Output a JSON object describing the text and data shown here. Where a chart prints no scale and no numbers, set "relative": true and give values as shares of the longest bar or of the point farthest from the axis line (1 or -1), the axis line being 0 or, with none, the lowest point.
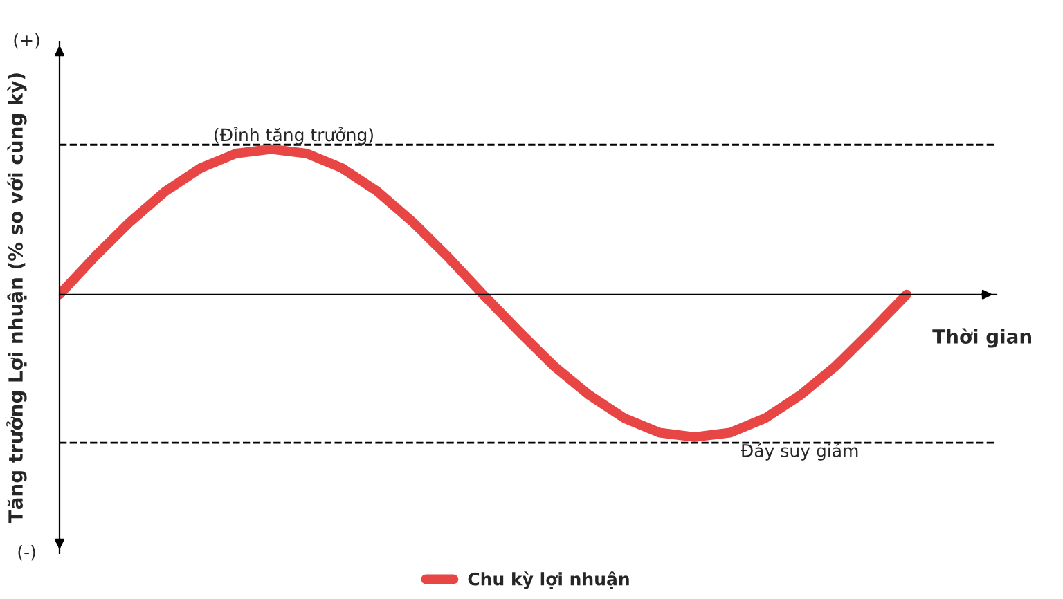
{
  "chart_data": {
    "type": "line",
    "relative": true,
    "xlabel": "Thời gian",
    "ylabel": "Tăng trưởng Lợi nhuận (% so với cùng kỳ)",
    "categories": [
      null,
      null,
      null,
      null,
      null,
      null,
      null,
      null,
      null,
      null,
      null,
      null,
      null,
      null,
      null,
      null,
      null,
      null,
      null,
      null,
      null,
      null,
      null,
      null,
      null
    ],
    "series": [
      {
        "name": "Chu kỳ lợi nhuận",
        "color": "#e84545",
        "values": [
          0,
          0.26,
          0.5,
          0.71,
          0.87,
          0.97,
          1,
          0.97,
          0.87,
          0.71,
          0.5,
          0.26,
          0,
          -0.25,
          -0.49,
          -0.69,
          -0.85,
          -0.95,
          -0.98,
          -0.95,
          -0.85,
          -0.69,
          -0.49,
          -0.25,
          0
        ]
      }
    ],
    "ref_lines": [
      {
        "axis": "y",
        "value": 1.03,
        "label": "(Đỉnh tăng trưởng)",
        "color": "#000000",
        "line_style": "dashed"
      },
      {
        "axis": "y",
        "value": -1.02,
        "label": "Đáy suy giảm",
        "color": "#000000",
        "line_style": "dashed"
      }
    ],
    "annotations": [
      "(+)",
      "(-)"
    ],
    "tick_labels": false,
    "legend": "bottom",
    "marker": "none",
    "line_style": "solid"
  }
}
